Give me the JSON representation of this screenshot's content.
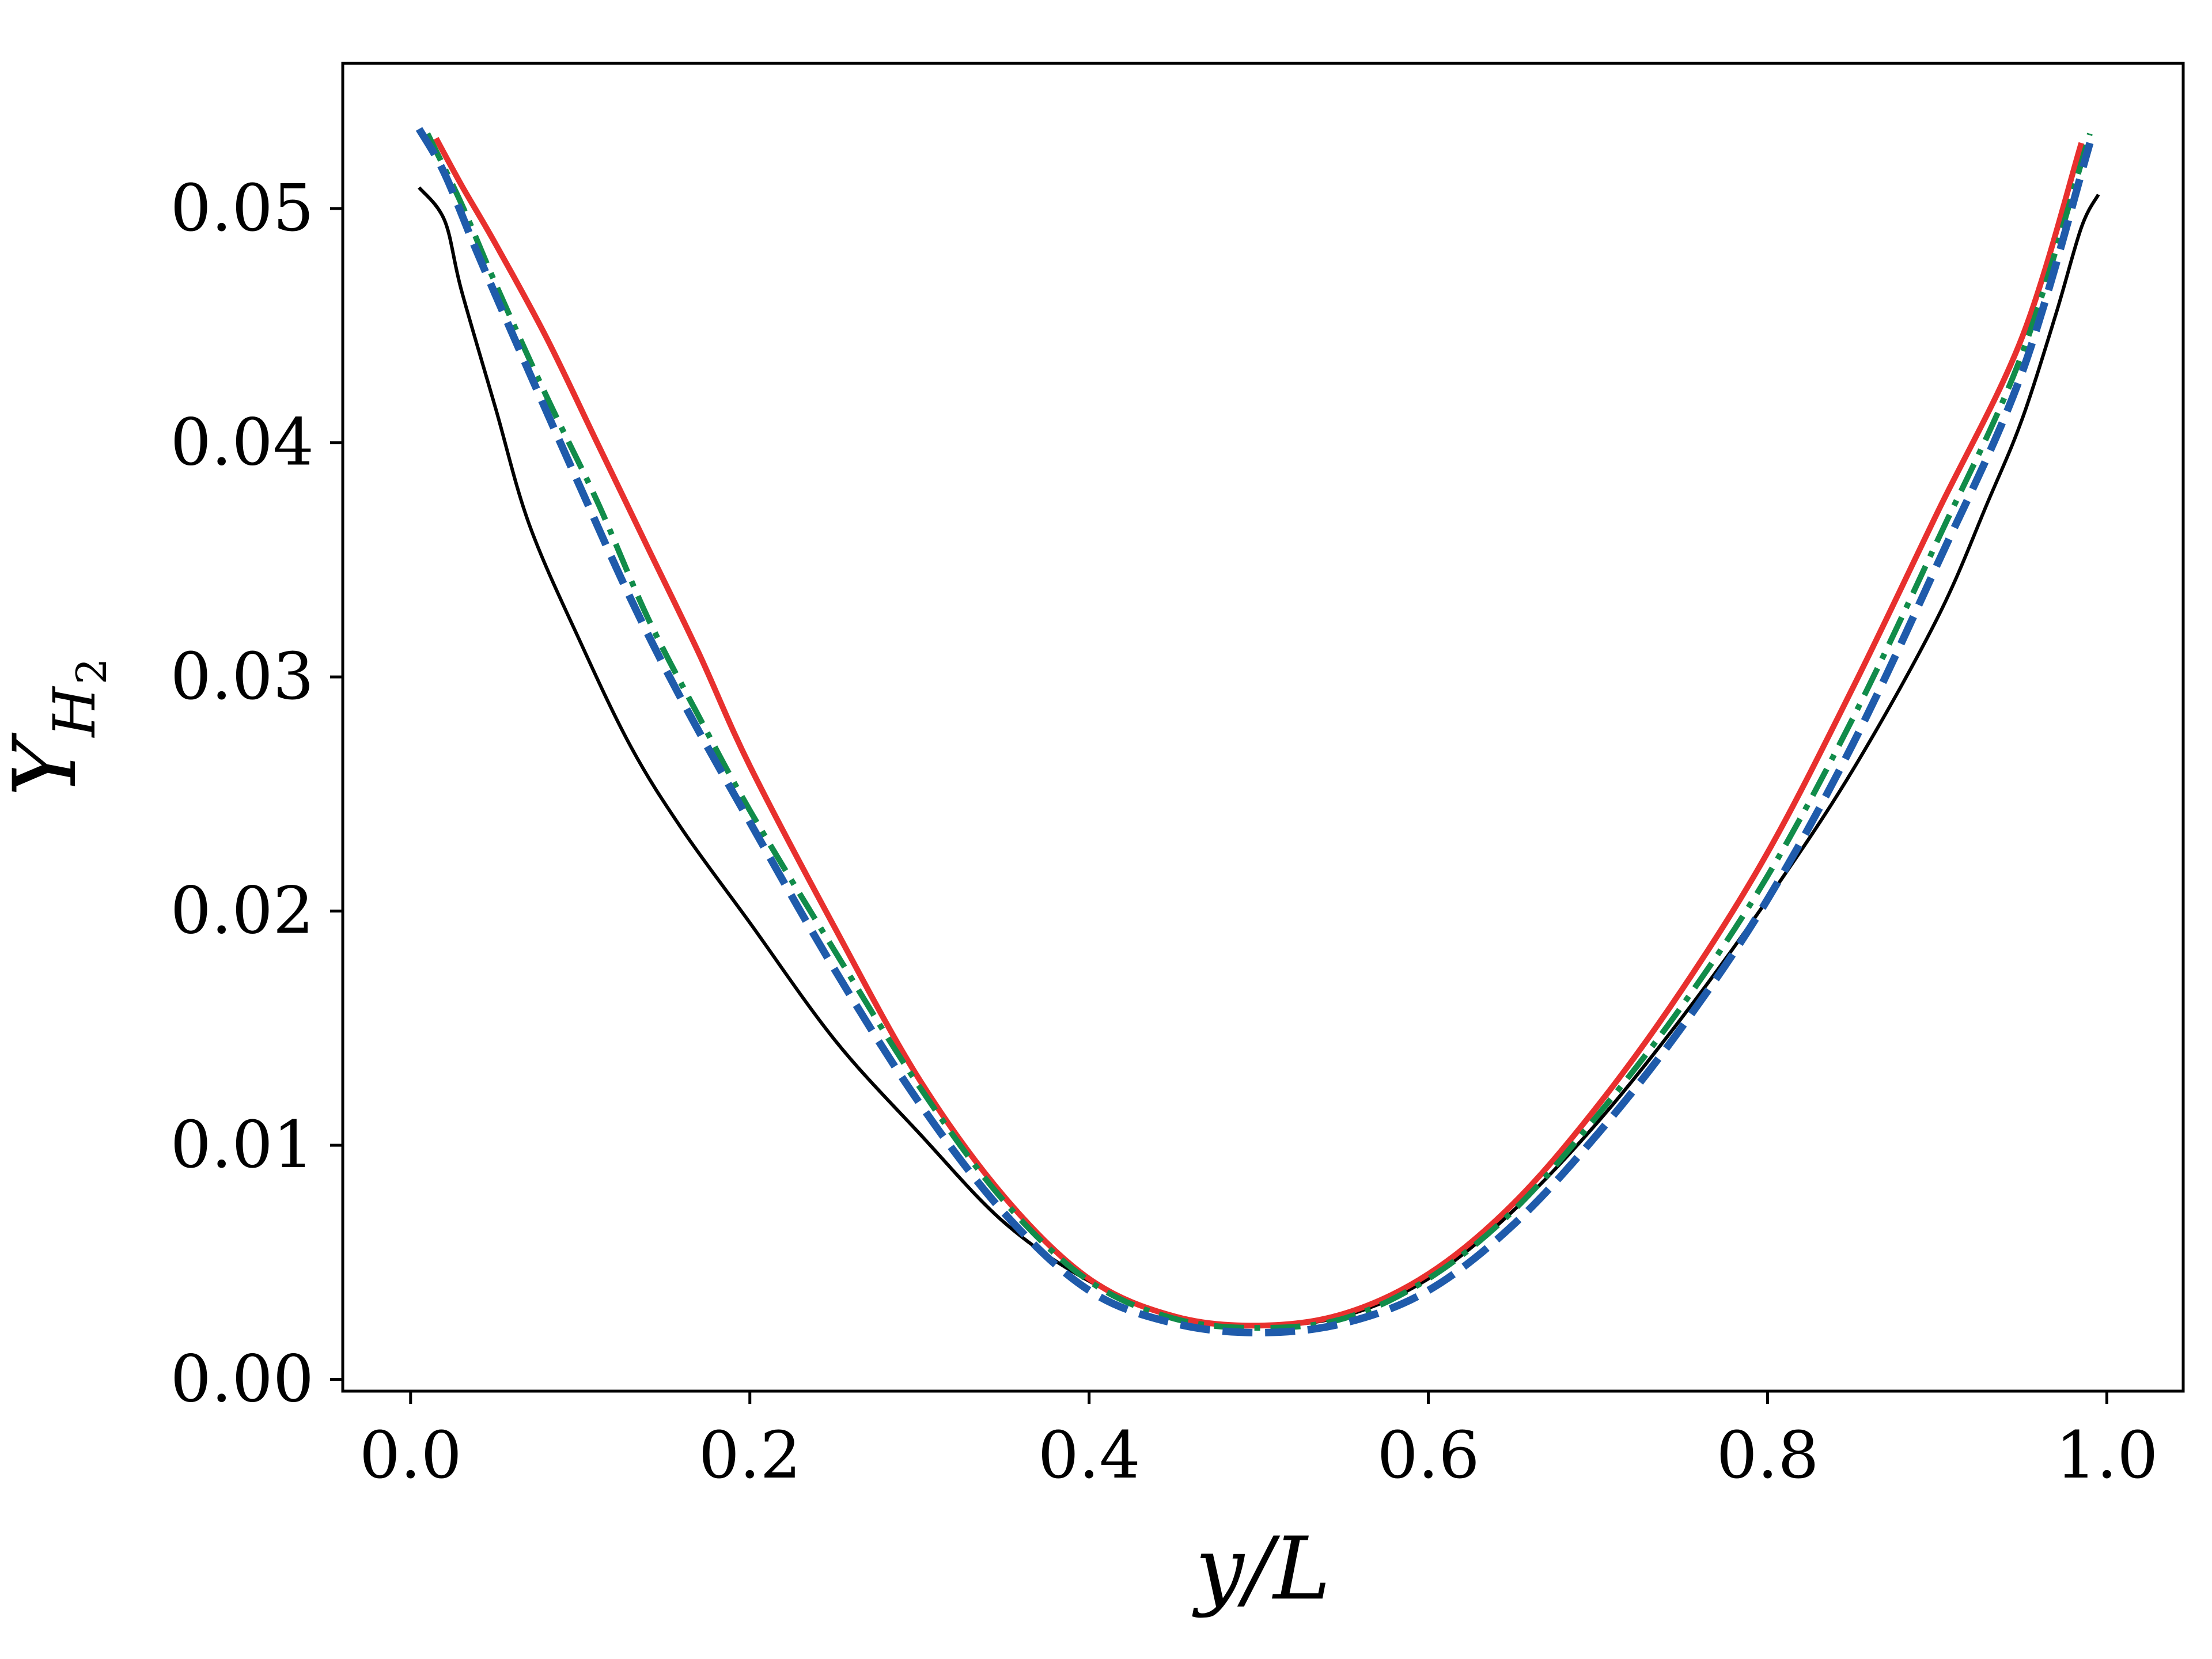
{
  "chart_data": {
    "type": "line",
    "xlabel": "y/L",
    "ylabel": "Y_{H_2}",
    "ylabel_parts": {
      "main": "Y",
      "sub": "H",
      "subsub": "2"
    },
    "xlim": [
      -0.04,
      1.045
    ],
    "ylim": [
      -0.0005,
      0.0562
    ],
    "xticks": [
      0.0,
      0.2,
      0.4,
      0.6,
      0.8,
      1.0
    ],
    "xtick_labels": [
      "0.0",
      "0.2",
      "0.4",
      "0.6",
      "0.8",
      "1.0"
    ],
    "yticks": [
      0.0,
      0.01,
      0.02,
      0.03,
      0.04,
      0.05
    ],
    "ytick_labels": [
      "0.00",
      "0.01",
      "0.02",
      "0.03",
      "0.04",
      "0.05"
    ],
    "grid": false,
    "series": [
      {
        "color": "#000000",
        "style": "solid",
        "x": [
          0.005,
          0.02,
          0.03,
          0.05,
          0.07,
          0.1,
          0.13,
          0.16,
          0.2,
          0.25,
          0.3,
          0.35,
          0.4,
          0.45,
          0.5,
          0.55,
          0.6,
          0.65,
          0.7,
          0.75,
          0.8,
          0.85,
          0.9,
          0.93,
          0.95,
          0.97,
          0.985,
          0.995
        ],
        "y": [
          0.0509,
          0.0495,
          0.0465,
          0.0415,
          0.0365,
          0.0315,
          0.027,
          0.0235,
          0.0195,
          0.0145,
          0.0105,
          0.0067,
          0.0042,
          0.0027,
          0.0023,
          0.0027,
          0.0043,
          0.0072,
          0.011,
          0.0155,
          0.0205,
          0.026,
          0.0325,
          0.0375,
          0.041,
          0.0455,
          0.0492,
          0.0506
        ]
      },
      {
        "color": "#e8302e",
        "style": "solid",
        "x": [
          0.015,
          0.03,
          0.05,
          0.08,
          0.11,
          0.14,
          0.17,
          0.2,
          0.25,
          0.3,
          0.35,
          0.4,
          0.45,
          0.5,
          0.55,
          0.6,
          0.65,
          0.7,
          0.75,
          0.8,
          0.85,
          0.9,
          0.95,
          0.985
        ],
        "y": [
          0.053,
          0.051,
          0.0485,
          0.0445,
          0.04,
          0.0355,
          0.031,
          0.0262,
          0.0193,
          0.0128,
          0.0078,
          0.0043,
          0.0027,
          0.0023,
          0.0028,
          0.0045,
          0.0075,
          0.0117,
          0.0167,
          0.0225,
          0.0295,
          0.037,
          0.0445,
          0.0528
        ]
      },
      {
        "color": "#118c4a",
        "style": "dashdot",
        "x": [
          0.01,
          0.03,
          0.05,
          0.08,
          0.11,
          0.14,
          0.17,
          0.2,
          0.25,
          0.3,
          0.35,
          0.4,
          0.45,
          0.5,
          0.55,
          0.6,
          0.65,
          0.7,
          0.75,
          0.8,
          0.85,
          0.9,
          0.95,
          0.99
        ],
        "y": [
          0.0532,
          0.0502,
          0.0468,
          0.042,
          0.0375,
          0.0325,
          0.0283,
          0.0243,
          0.0183,
          0.0125,
          0.0076,
          0.0042,
          0.0026,
          0.0022,
          0.0026,
          0.0043,
          0.0072,
          0.0113,
          0.016,
          0.0215,
          0.0282,
          0.0358,
          0.0438,
          0.0532
        ]
      },
      {
        "color": "#1f5bab",
        "style": "dashed",
        "x": [
          0.005,
          0.02,
          0.04,
          0.07,
          0.1,
          0.13,
          0.16,
          0.2,
          0.25,
          0.3,
          0.35,
          0.4,
          0.45,
          0.5,
          0.55,
          0.6,
          0.65,
          0.7,
          0.75,
          0.8,
          0.85,
          0.9,
          0.95,
          0.99
        ],
        "y": [
          0.0534,
          0.0515,
          0.048,
          0.043,
          0.0381,
          0.0333,
          0.029,
          0.0238,
          0.0175,
          0.0118,
          0.0071,
          0.0038,
          0.0024,
          0.002,
          0.0024,
          0.0038,
          0.0066,
          0.0105,
          0.0151,
          0.0205,
          0.0271,
          0.0348,
          0.043,
          0.0528
        ]
      }
    ]
  }
}
